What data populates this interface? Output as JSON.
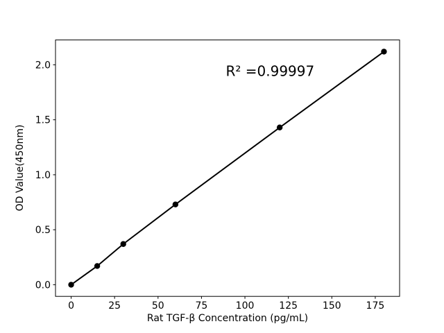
{
  "chart_data": {
    "type": "line",
    "title": "",
    "xlabel": "Rat TGF-β Concentration (pg/mL)",
    "ylabel": "OD Value(450nm)",
    "x": [
      0,
      15,
      30,
      60,
      120,
      180
    ],
    "y": [
      0.0,
      0.17,
      0.37,
      0.73,
      1.43,
      2.12
    ],
    "xticks": [
      "0",
      "25",
      "50",
      "75",
      "100",
      "125",
      "150",
      "175"
    ],
    "xtick_values": [
      0,
      25,
      50,
      75,
      100,
      125,
      150,
      175
    ],
    "yticks": [
      "0.0",
      "0.5",
      "1.0",
      "1.5",
      "2.0"
    ],
    "ytick_values": [
      0.0,
      0.5,
      1.0,
      1.5,
      2.0
    ],
    "xlim": [
      -9,
      189
    ],
    "ylim": [
      -0.106,
      2.226
    ],
    "grid": false,
    "legend": "none",
    "annotation": {
      "text": "R² =0.99997",
      "x": 89,
      "y": 1.9
    },
    "line_color": "#000000",
    "marker_color": "#000000",
    "spine_color": "#000000",
    "background_color": "#ffffff"
  }
}
